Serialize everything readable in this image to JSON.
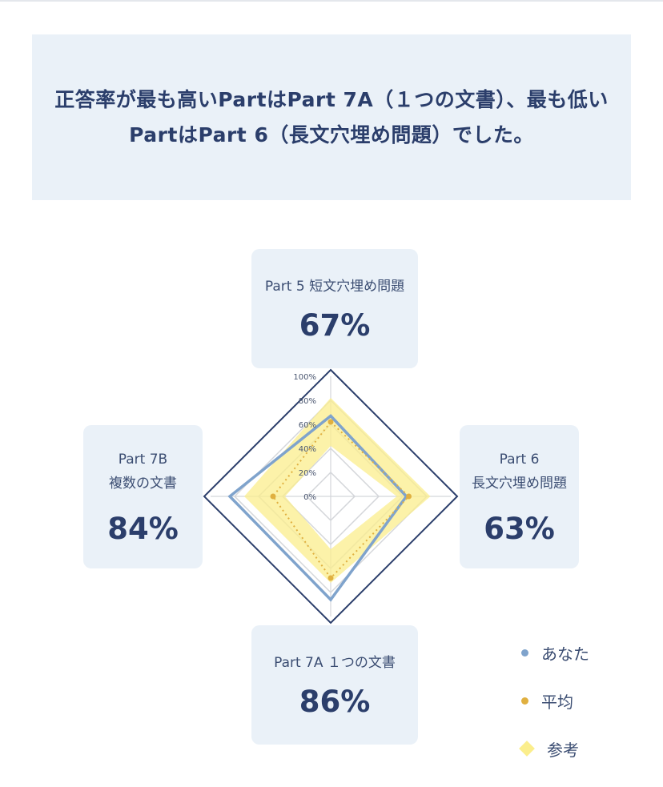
{
  "summary": {
    "text": "正答率が最も高いPartはPart 7A（１つの文書）、最も低いPartはPart 6（長文穴埋め問題）でした。"
  },
  "cards": {
    "top": {
      "label_line1": "Part 5 短文穴埋め問題",
      "value": "67%"
    },
    "right": {
      "label_line1": "Part 6",
      "label_line2": "長文穴埋め問題",
      "value": "63%"
    },
    "bottom": {
      "label_line1": "Part 7A １つの文書",
      "value": "86%"
    },
    "left": {
      "label_line1": "Part 7B",
      "label_line2": "複数の文書",
      "value": "84%"
    }
  },
  "legend": {
    "you": "あなた",
    "average": "平均",
    "reference": "参考"
  },
  "colors": {
    "you": "#7fa3cc",
    "average": "#e0b040",
    "reference": "#fbee8c",
    "frame": "#2b3e6b",
    "grid": "#d4d6da"
  },
  "chart_data": {
    "type": "radar",
    "axes": [
      "Part 5",
      "Part 6",
      "Part 7A",
      "Part 7B"
    ],
    "range": [
      0,
      100
    ],
    "tick_labels": [
      "0%",
      "20%",
      "40%",
      "60%",
      "80%",
      "100%"
    ],
    "series": [
      {
        "name": "あなた",
        "values": [
          67,
          63,
          86,
          84
        ]
      },
      {
        "name": "平均",
        "values": [
          62,
          65,
          68,
          48
        ]
      },
      {
        "name": "参考",
        "band_low": [
          42,
          55,
          44,
          38
        ],
        "band_high": [
          82,
          83,
          72,
          72
        ]
      }
    ]
  }
}
